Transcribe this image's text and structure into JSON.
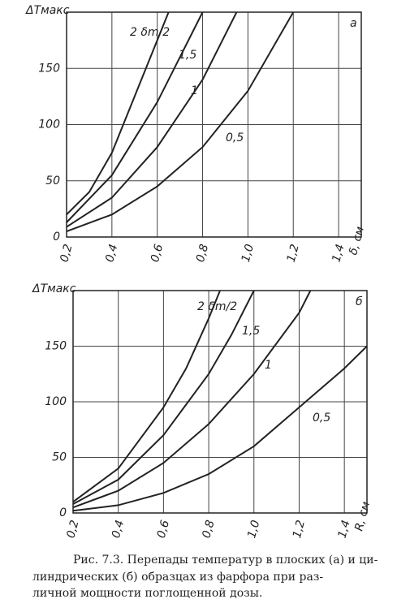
{
  "chart_data": [
    {
      "type": "line",
      "panel": "а",
      "ylabel": "ΔTмакс",
      "xlabel": "δ, см",
      "xlim": [
        0.2,
        1.5
      ],
      "ylim": [
        0,
        200
      ],
      "xticks": [
        {
          "value": 0.2,
          "label": "0,2"
        },
        {
          "value": 0.4,
          "label": "0,4"
        },
        {
          "value": 0.6,
          "label": "0,6"
        },
        {
          "value": 0.8,
          "label": "0,8"
        },
        {
          "value": 1.0,
          "label": "1,0"
        },
        {
          "value": 1.2,
          "label": "1,2"
        },
        {
          "value": 1.4,
          "label": "1,4"
        }
      ],
      "yticks": [
        0,
        50,
        100,
        150
      ],
      "grid": true,
      "series": [
        {
          "name": "2 δm/2",
          "color": "#222",
          "x": [
            0.2,
            0.3,
            0.4,
            0.5,
            0.6,
            0.65
          ],
          "values": [
            20,
            40,
            75,
            125,
            175,
            200
          ]
        },
        {
          "name": "1,5",
          "color": "#222",
          "x": [
            0.2,
            0.4,
            0.6,
            0.7,
            0.8
          ],
          "values": [
            13,
            55,
            120,
            160,
            200
          ]
        },
        {
          "name": "1",
          "color": "#222",
          "x": [
            0.2,
            0.4,
            0.6,
            0.8,
            0.9,
            0.95
          ],
          "values": [
            9,
            35,
            80,
            140,
            180,
            200
          ]
        },
        {
          "name": "0,5",
          "color": "#222",
          "x": [
            0.2,
            0.4,
            0.6,
            0.8,
            1.0,
            1.2
          ],
          "values": [
            5,
            20,
            45,
            80,
            130,
            200
          ]
        }
      ]
    },
    {
      "type": "line",
      "panel": "б",
      "ylabel": "ΔTмакс",
      "xlabel": "R, см",
      "xlim": [
        0.2,
        1.5
      ],
      "ylim": [
        0,
        200
      ],
      "xticks": [
        {
          "value": 0.2,
          "label": "0,2"
        },
        {
          "value": 0.4,
          "label": "0,4"
        },
        {
          "value": 0.6,
          "label": "0,6"
        },
        {
          "value": 0.8,
          "label": "0,8"
        },
        {
          "value": 1.0,
          "label": "1,0"
        },
        {
          "value": 1.2,
          "label": "1,2"
        },
        {
          "value": 1.4,
          "label": "1,4"
        }
      ],
      "yticks": [
        0,
        50,
        100,
        150
      ],
      "grid": true,
      "series": [
        {
          "name": "2 δm/2",
          "color": "#222",
          "x": [
            0.2,
            0.4,
            0.6,
            0.7,
            0.8,
            0.85
          ],
          "values": [
            10,
            40,
            95,
            130,
            175,
            200
          ]
        },
        {
          "name": "1,5",
          "color": "#222",
          "x": [
            0.2,
            0.4,
            0.6,
            0.8,
            0.9,
            1.0
          ],
          "values": [
            8,
            30,
            70,
            125,
            160,
            200
          ]
        },
        {
          "name": "1",
          "color": "#222",
          "x": [
            0.2,
            0.4,
            0.6,
            0.8,
            1.0,
            1.2,
            1.25
          ],
          "values": [
            5,
            20,
            45,
            80,
            125,
            180,
            200
          ]
        },
        {
          "name": "0,5",
          "color": "#222",
          "x": [
            0.2,
            0.4,
            0.6,
            0.8,
            1.0,
            1.2,
            1.4,
            1.5
          ],
          "values": [
            2,
            7,
            18,
            35,
            60,
            95,
            130,
            150
          ]
        }
      ]
    }
  ],
  "caption": [
    "Рис. 7.3. Перепады температур в плоских (а) и ци-",
    "линдрических (б) образцах из фарфора при раз-",
    "личной мощности поглощенной дозы."
  ]
}
